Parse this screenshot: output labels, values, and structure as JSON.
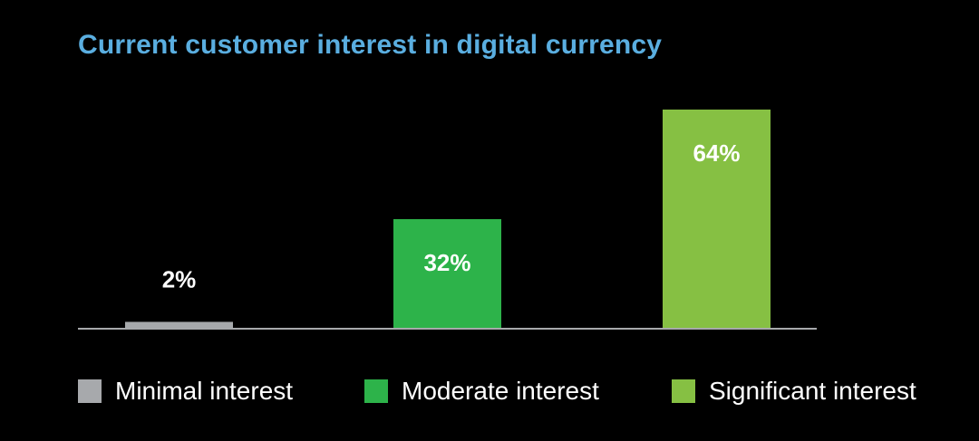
{
  "chart_data": {
    "type": "bar",
    "title": "Current customer interest in digital currency",
    "categories": [
      "Minimal interest",
      "Moderate interest",
      "Significant interest"
    ],
    "values": [
      2,
      32,
      64
    ],
    "value_labels": [
      "2%",
      "32%",
      "64%"
    ],
    "colors": [
      "#a7a9ac",
      "#2db34a",
      "#86c043"
    ],
    "ylim": [
      0,
      64
    ],
    "grid": false,
    "legend": "bottom"
  },
  "colors": {
    "title": "#5aaee0",
    "axis": "#a7a9ac",
    "background": "#000000",
    "label": "#ffffff"
  }
}
